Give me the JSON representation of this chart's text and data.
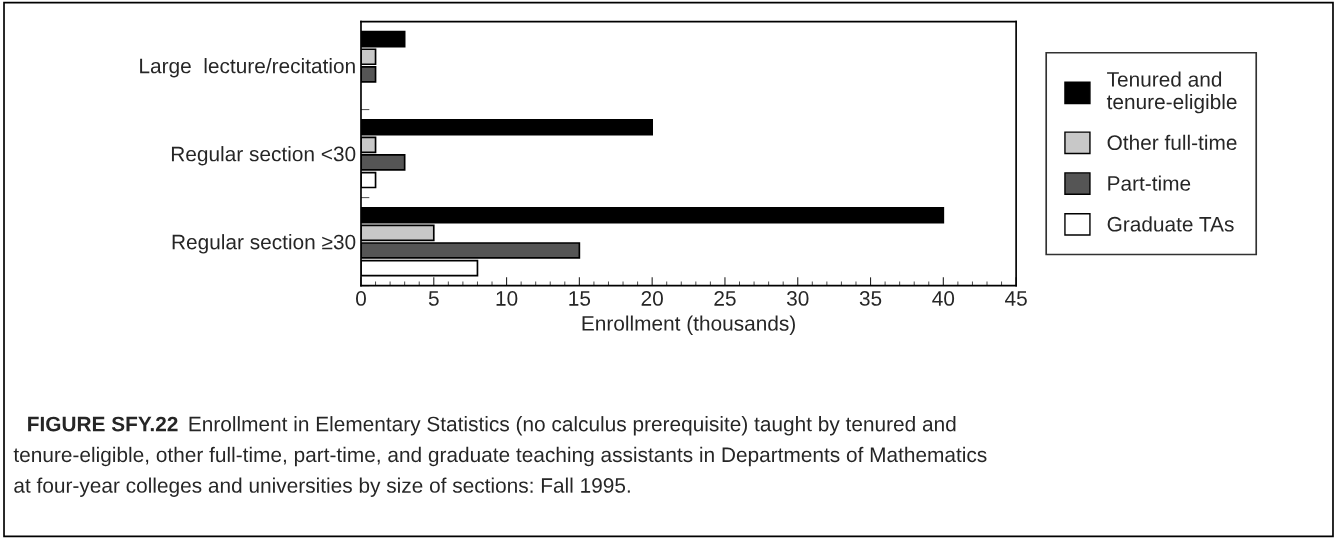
{
  "chart_data": {
    "type": "bar",
    "orientation": "horizontal",
    "xlabel": "Enrollment (thousands)",
    "categories": [
      "Large  lecture/recitation",
      "Regular section <30",
      "Regular section ≥30"
    ],
    "series": [
      {
        "name": "Tenured and\ntenure-eligible",
        "color": "#000000",
        "values": [
          3,
          20,
          40
        ]
      },
      {
        "name": "Other full-time",
        "color": "#c8c8c8",
        "values": [
          1,
          1,
          5
        ]
      },
      {
        "name": "Part-time",
        "color": "#555555",
        "values": [
          1,
          3,
          15
        ]
      },
      {
        "name": "Graduate TAs",
        "color": "#ffffff",
        "values": [
          null,
          1,
          8
        ]
      }
    ],
    "xlim": [
      0,
      45
    ],
    "xticks": [
      0,
      5,
      10,
      15,
      20,
      25,
      30,
      35,
      40,
      45
    ],
    "grid": false,
    "legend": "right",
    "annotations": [
      "FIGURE SFY.22",
      "Enrollment in Elementary Statistics (no calculus prerequisite) taught by tenured and\ntenure-eligible, other full-time, part-time, and graduate teaching assistants in Departments of Mathematics\nat four-year colleges and universities by size of sections: Fall 1995."
    ]
  }
}
